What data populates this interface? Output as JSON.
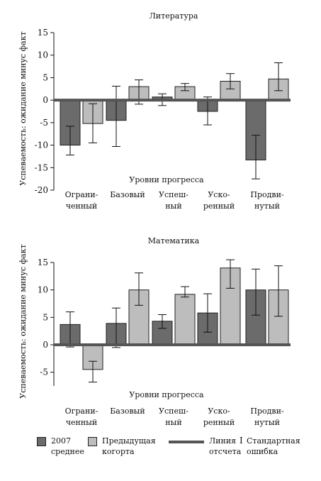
{
  "chart_data": [
    {
      "type": "bar",
      "title": "Литература",
      "ylabel": "Успеваемость: ожидание минус факт",
      "xlabel": "Уровни прогресса",
      "categories": [
        "Ограни-\nченный",
        "Базовый",
        "Успеш-\nный",
        "Уско-\nренный",
        "Продви-\nнутый"
      ],
      "ylim": [
        -20,
        15
      ],
      "yticks": [
        -20,
        -15,
        -10,
        -5,
        0,
        5,
        10,
        15
      ],
      "series": [
        {
          "name": "2007 среднее",
          "color": "#6b6b6b",
          "values": [
            -10,
            -4.5,
            0.7,
            -2.5,
            -13.3
          ],
          "errors": [
            [
              -12.2,
              -5.8
            ],
            [
              -10.3,
              3.1
            ],
            [
              -1.2,
              1.4
            ],
            [
              -5.5,
              0.7
            ],
            [
              -17.5,
              -7.8
            ]
          ]
        },
        {
          "name": "Предыдущая когорта",
          "color": "#bdbdbd",
          "values": [
            -5.2,
            3,
            3,
            4.2,
            4.7
          ],
          "errors": [
            [
              -9.5,
              -0.8
            ],
            [
              -0.9,
              4.5
            ],
            [
              2.1,
              3.7
            ],
            [
              2.5,
              5.9
            ],
            [
              2.1,
              8.3
            ]
          ]
        }
      ]
    },
    {
      "type": "bar",
      "title": "Математика",
      "ylabel": "Успеваемость: ожидание минус факт",
      "xlabel": "Уровни прогресса",
      "categories": [
        "Ограни-\nченный",
        "Базовый",
        "Успеш-\nный",
        "Уско-\nренный",
        "Продви-\nнутый"
      ],
      "ylim": [
        -7.5,
        15
      ],
      "yticks": [
        -5,
        0,
        5,
        10,
        15
      ],
      "series": [
        {
          "name": "2007 среднее",
          "color": "#6b6b6b",
          "values": [
            3.7,
            3.9,
            4.3,
            5.8,
            10
          ],
          "errors": [
            [
              -0.4,
              6
            ],
            [
              -0.5,
              6.7
            ],
            [
              3,
              5.5
            ],
            [
              2.3,
              9.3
            ],
            [
              5.4,
              13.8
            ]
          ]
        },
        {
          "name": "Предыдущая когорта",
          "color": "#bdbdbd",
          "values": [
            -4.5,
            10,
            9.2,
            14,
            10
          ],
          "errors": [
            [
              -6.8,
              -3
            ],
            [
              7.2,
              13.1
            ],
            [
              8.7,
              10.6
            ],
            [
              10.3,
              15.5
            ],
            [
              5.2,
              14.4
            ]
          ]
        }
      ]
    }
  ],
  "legend": {
    "series1": "2007\nсреднее",
    "series2": "Предыдущая\nкогорта",
    "baseline": "Линия\nотсчета",
    "error_symbol": "I",
    "error": "Стандартная\nошибка",
    "color1": "#6b6b6b",
    "color2": "#bdbdbd",
    "baseline_color": "#555555"
  }
}
